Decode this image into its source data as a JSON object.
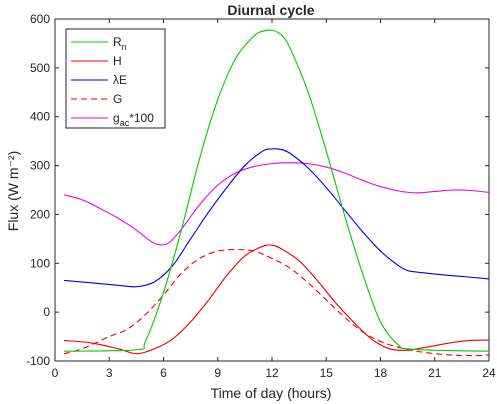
{
  "chart_data": {
    "type": "line",
    "title": "Diurnal cycle",
    "xlabel": "Time of day (hours)",
    "ylabel": "Flux (W m⁻²)",
    "xlim": [
      0,
      24
    ],
    "ylim": [
      -100,
      600
    ],
    "xticks": [
      0,
      3,
      6,
      9,
      12,
      15,
      18,
      21,
      24
    ],
    "yticks": [
      -100,
      0,
      100,
      200,
      300,
      400,
      500,
      600
    ],
    "grid": false,
    "legend_position": "top-left",
    "series": [
      {
        "name": "Rn",
        "legend_main": "R",
        "legend_sub": "n",
        "color": "#00cc00",
        "style": "solid",
        "x": [
          0.5,
          4.5,
          5.0,
          6.0,
          7.0,
          8.0,
          9.0,
          10.0,
          11.0,
          11.5,
          12.0,
          12.5,
          13.0,
          14.0,
          15.0,
          16.0,
          17.0,
          18.0,
          19.0,
          19.5,
          21.0,
          24.0
        ],
        "y": [
          -80,
          -77,
          -60,
          40,
          170,
          315,
          435,
          520,
          565,
          575,
          577,
          568,
          540,
          450,
          330,
          200,
          80,
          -20,
          -68,
          -75,
          -78,
          -80
        ]
      },
      {
        "name": "H",
        "legend_main": "H",
        "legend_sub": "",
        "color": "#ee0000",
        "style": "solid",
        "x": [
          0.5,
          2.0,
          3.5,
          4.5,
          5.5,
          6.5,
          7.5,
          8.5,
          9.5,
          10.5,
          11.5,
          12.0,
          12.5,
          13.5,
          14.5,
          15.5,
          16.5,
          17.5,
          18.5,
          19.5,
          20.5,
          22.0,
          23.0,
          24.0
        ],
        "y": [
          -58,
          -63,
          -75,
          -85,
          -75,
          -55,
          -20,
          25,
          75,
          115,
          135,
          137,
          130,
          105,
          65,
          20,
          -20,
          -55,
          -75,
          -78,
          -72,
          -62,
          -58,
          -57
        ]
      },
      {
        "name": "G",
        "legend_main": "G",
        "legend_sub": "",
        "color": "#ee0000",
        "style": "dashed",
        "x": [
          0.5,
          1.5,
          3.0,
          4.0,
          5.0,
          6.0,
          7.0,
          8.0,
          9.0,
          10.0,
          11.0,
          12.0,
          13.0,
          14.0,
          15.0,
          16.0,
          17.0,
          18.0,
          19.0,
          20.0,
          21.0,
          22.0,
          23.0,
          24.0
        ],
        "y": [
          -85,
          -75,
          -50,
          -35,
          -5,
          35,
          80,
          110,
          125,
          128,
          125,
          110,
          90,
          60,
          25,
          -10,
          -40,
          -60,
          -72,
          -80,
          -85,
          -88,
          -89,
          -88
        ]
      },
      {
        "name": "λE",
        "legend_main": "λE",
        "legend_sub": "",
        "color": "#0000dd",
        "style": "solid",
        "x": [
          0.5,
          2.0,
          3.5,
          4.5,
          5.5,
          6.5,
          7.5,
          8.5,
          9.5,
          10.5,
          11.5,
          12.0,
          12.5,
          13.0,
          14.0,
          15.0,
          16.0,
          17.0,
          18.0,
          19.0,
          19.5,
          20.0,
          21.0,
          22.5,
          24.0
        ],
        "y": [
          65,
          60,
          55,
          52,
          62,
          95,
          150,
          205,
          255,
          300,
          330,
          334,
          333,
          325,
          295,
          255,
          210,
          165,
          125,
          95,
          85,
          82,
          78,
          73,
          68
        ]
      },
      {
        "name": "gac*100",
        "legend_main": "g",
        "legend_sub": "ac",
        "legend_suffix": "*100",
        "color": "#ee00ee",
        "style": "solid",
        "x": [
          0.5,
          1.5,
          2.5,
          3.5,
          4.5,
          5.3,
          5.8,
          6.3,
          7.0,
          8.0,
          9.0,
          10.0,
          11.0,
          12.0,
          13.0,
          14.0,
          15.0,
          16.0,
          17.0,
          18.0,
          19.0,
          20.0,
          21.0,
          22.0,
          23.0,
          24.0
        ],
        "y": [
          240,
          230,
          212,
          192,
          168,
          145,
          138,
          142,
          170,
          220,
          260,
          285,
          298,
          304,
          306,
          304,
          297,
          285,
          270,
          257,
          248,
          244,
          247,
          250,
          249,
          245
        ]
      }
    ]
  }
}
